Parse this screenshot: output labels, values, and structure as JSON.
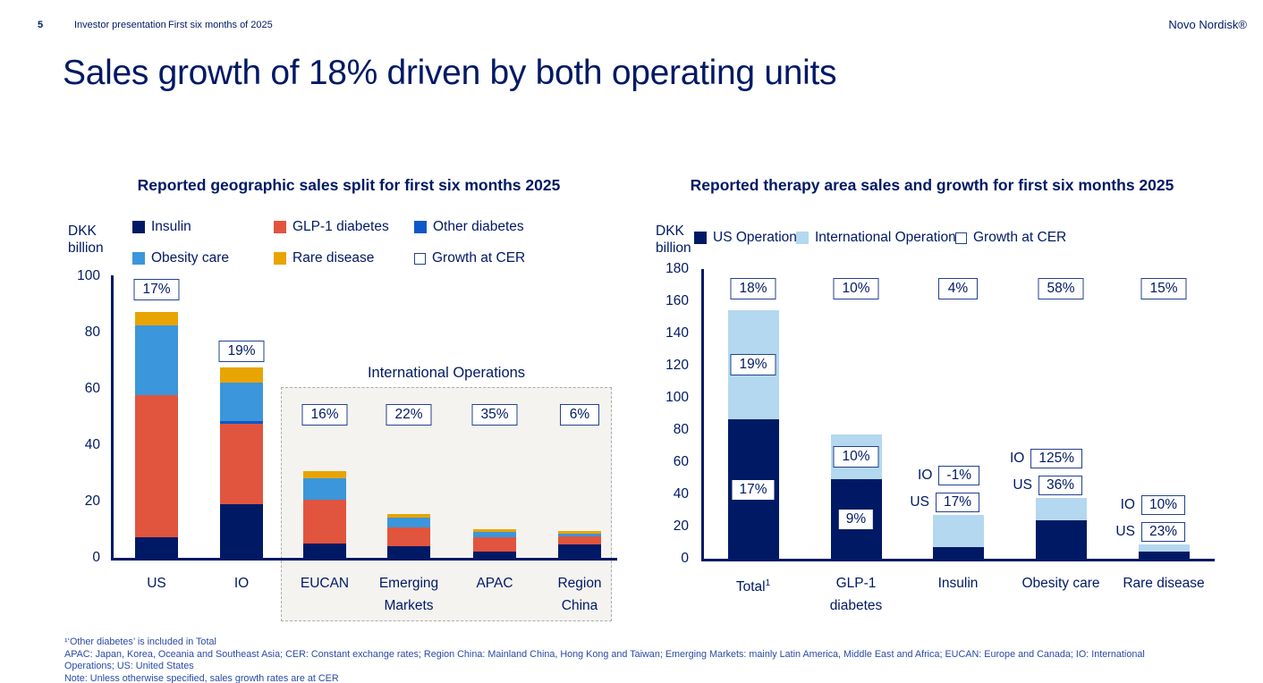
{
  "header": {
    "page_number": "5",
    "section": "Investor presentation",
    "subsection": "First six months of 2025",
    "logo": "Novo Nordisk®"
  },
  "title": "Sales growth of 18% driven by both operating units",
  "colors": {
    "navy": "#001965",
    "glp1_red": "#E1543E",
    "other_diabetes_blue": "#0E57C9",
    "obesity_blue": "#3B96DB",
    "rare_gold": "#E8A400",
    "io_pale_blue": "#B4D8F0",
    "box_border": "#25418F",
    "dashed_fill": "#F4F3F0",
    "dashed_border": "#ACACAC",
    "footnote_blue": "#2A4AA5"
  },
  "chart_data": [
    {
      "type": "bar",
      "stacked": true,
      "title": "Reported geographic sales split for first six months 2025",
      "ylabel": "DKK billion",
      "ylim": [
        0,
        100
      ],
      "yticks": [
        0,
        20,
        40,
        60,
        80,
        100
      ],
      "grid": false,
      "legend_position": "top",
      "categories": [
        "US",
        "IO",
        "EUCAN",
        "Emerging\nMarkets",
        "APAC",
        "Region\nChina"
      ],
      "series": [
        {
          "name": "Insulin",
          "color": "#001965",
          "values": [
            7.5,
            19.5,
            5.5,
            4.5,
            2.5,
            5
          ]
        },
        {
          "name": "GLP-1 diabetes",
          "color": "#E1543E",
          "values": [
            50.5,
            28.5,
            15.5,
            6.5,
            5,
            3
          ]
        },
        {
          "name": "Other diabetes",
          "color": "#0E57C9",
          "values": [
            0,
            1,
            0,
            0,
            0,
            0
          ]
        },
        {
          "name": "Obesity care",
          "color": "#3B96DB",
          "values": [
            25,
            13.5,
            7.5,
            3.5,
            2,
            1
          ]
        },
        {
          "name": "Rare disease",
          "color": "#E8A400",
          "values": [
            4.5,
            5.5,
            2.5,
            1.5,
            1,
            0.7
          ]
        }
      ],
      "growth_at_cer": [
        "17%",
        "19%",
        "16%",
        "22%",
        "35%",
        "6%"
      ],
      "legend_extra": "Growth at CER",
      "annotation_box": {
        "label": "International Operations",
        "categories": [
          "EUCAN",
          "Emerging Markets",
          "APAC",
          "Region China"
        ]
      }
    },
    {
      "type": "bar",
      "stacked": true,
      "title": "Reported therapy area sales and growth for first six months 2025",
      "ylabel": "DKK billion",
      "ylim": [
        0,
        180
      ],
      "yticks": [
        0,
        20,
        40,
        60,
        80,
        100,
        120,
        140,
        160,
        180
      ],
      "grid": false,
      "legend_position": "top",
      "categories": [
        "Total",
        "GLP-1\ndiabetes",
        "Insulin",
        "Obesity care",
        "Rare disease"
      ],
      "category_sups": [
        "1",
        "",
        "",
        "",
        ""
      ],
      "series": [
        {
          "name": "US Operations",
          "color": "#001965",
          "values": [
            87,
            50,
            8,
            24.5,
            5
          ]
        },
        {
          "name": "International Operations",
          "color": "#B4D8F0",
          "values": [
            68,
            28,
            20,
            14,
            4.5
          ]
        }
      ],
      "growth_at_cer": [
        "18%",
        "10%",
        "4%",
        "58%",
        "15%"
      ],
      "legend_extra": "Growth at CER",
      "segment_growth": [
        {
          "category": "Total",
          "io": "19%",
          "us": "17%",
          "position": "inside"
        },
        {
          "category": "GLP-1 diabetes",
          "io": "10%",
          "us": "9%",
          "position": "inside"
        },
        {
          "category": "Insulin",
          "io": "-1%",
          "us": "17%",
          "position": "side"
        },
        {
          "category": "Obesity care",
          "io": "125%",
          "us": "36%",
          "position": "side"
        },
        {
          "category": "Rare disease",
          "io": "10%",
          "us": "23%",
          "position": "side"
        }
      ]
    }
  ],
  "footnotes": [
    "¹‘Other diabetes’ is included in Total",
    "APAC: Japan, Korea, Oceania and Southeast Asia; CER: Constant exchange rates; Region China: Mainland China, Hong Kong and Taiwan; Emerging Markets: mainly Latin America, Middle East and Africa; EUCAN: Europe and Canada; IO: International",
    "Operations; US: United States",
    "Note: Unless otherwise specified, sales growth rates are at CER"
  ]
}
